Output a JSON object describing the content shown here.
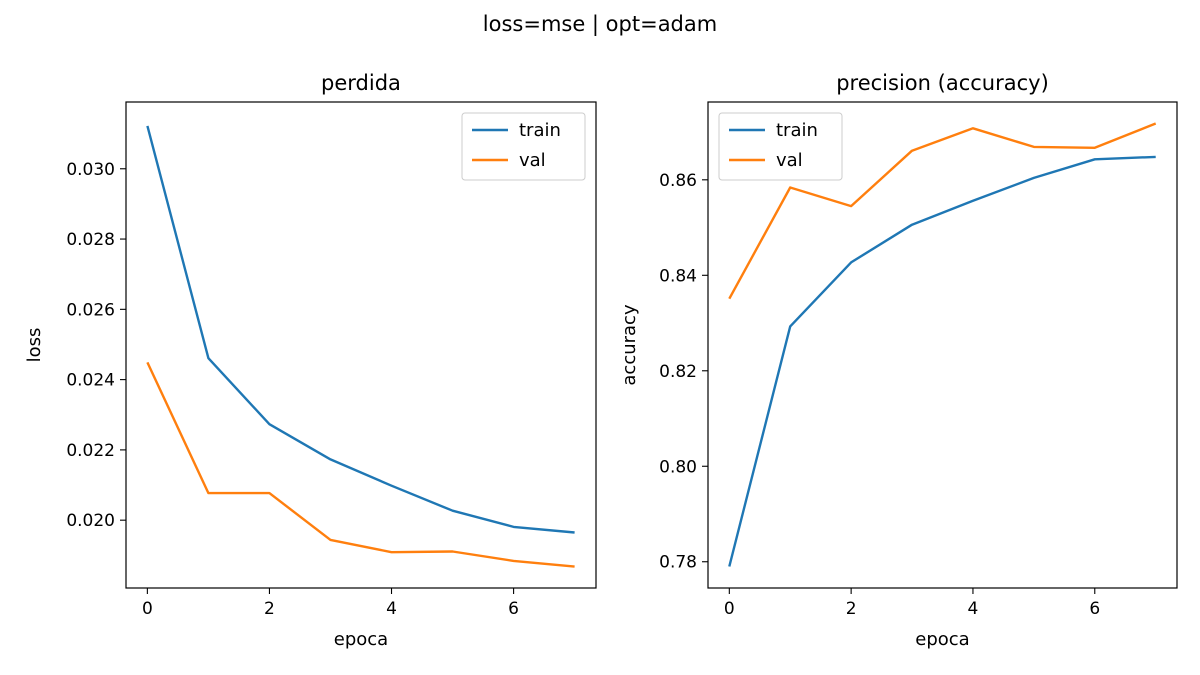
{
  "suptitle": "loss=mse | opt=adam",
  "colors": {
    "train": "#1f77b4",
    "val": "#ff7f0e"
  },
  "chart_data": [
    {
      "type": "line",
      "title": "perdida",
      "xlabel": "epoca",
      "ylabel": "loss",
      "x": [
        0,
        1,
        2,
        3,
        4,
        5,
        6,
        7
      ],
      "xlim": [
        -0.35,
        7.35
      ],
      "ylim": [
        0.01807,
        0.0319
      ],
      "xticks": [
        0,
        2,
        4,
        6
      ],
      "xtick_labels": [
        "0",
        "2",
        "4",
        "6"
      ],
      "yticks": [
        0.02,
        0.022,
        0.024,
        0.026,
        0.028,
        0.03
      ],
      "ytick_labels": [
        "0.020",
        "0.022",
        "0.024",
        "0.026",
        "0.028",
        "0.030"
      ],
      "legend_position": "upper-right",
      "grid": false,
      "series": [
        {
          "name": "train",
          "values": [
            0.03122,
            0.02461,
            0.02273,
            0.02173,
            0.02098,
            0.02027,
            0.01981,
            0.01965
          ]
        },
        {
          "name": "val",
          "values": [
            0.02449,
            0.02077,
            0.02077,
            0.01944,
            0.01909,
            0.01911,
            0.01884,
            0.01868
          ]
        }
      ]
    },
    {
      "type": "line",
      "title": "precision (accuracy)",
      "xlabel": "epoca",
      "ylabel": "accuracy",
      "x": [
        0,
        1,
        2,
        3,
        4,
        5,
        6,
        7
      ],
      "xlim": [
        -0.35,
        7.35
      ],
      "ylim": [
        0.7745,
        0.8763
      ],
      "xticks": [
        0,
        2,
        4,
        6
      ],
      "xtick_labels": [
        "0",
        "2",
        "4",
        "6"
      ],
      "yticks": [
        0.78,
        0.8,
        0.82,
        0.84,
        0.86
      ],
      "ytick_labels": [
        "0.78",
        "0.80",
        "0.82",
        "0.84",
        "0.86"
      ],
      "legend_position": "upper-left",
      "grid": false,
      "series": [
        {
          "name": "train",
          "values": [
            0.779,
            0.8293,
            0.8427,
            0.8506,
            0.8556,
            0.8604,
            0.8643,
            0.8648
          ]
        },
        {
          "name": "val",
          "values": [
            0.8351,
            0.8584,
            0.8545,
            0.8661,
            0.8708,
            0.8669,
            0.8667,
            0.8718
          ]
        }
      ]
    }
  ]
}
